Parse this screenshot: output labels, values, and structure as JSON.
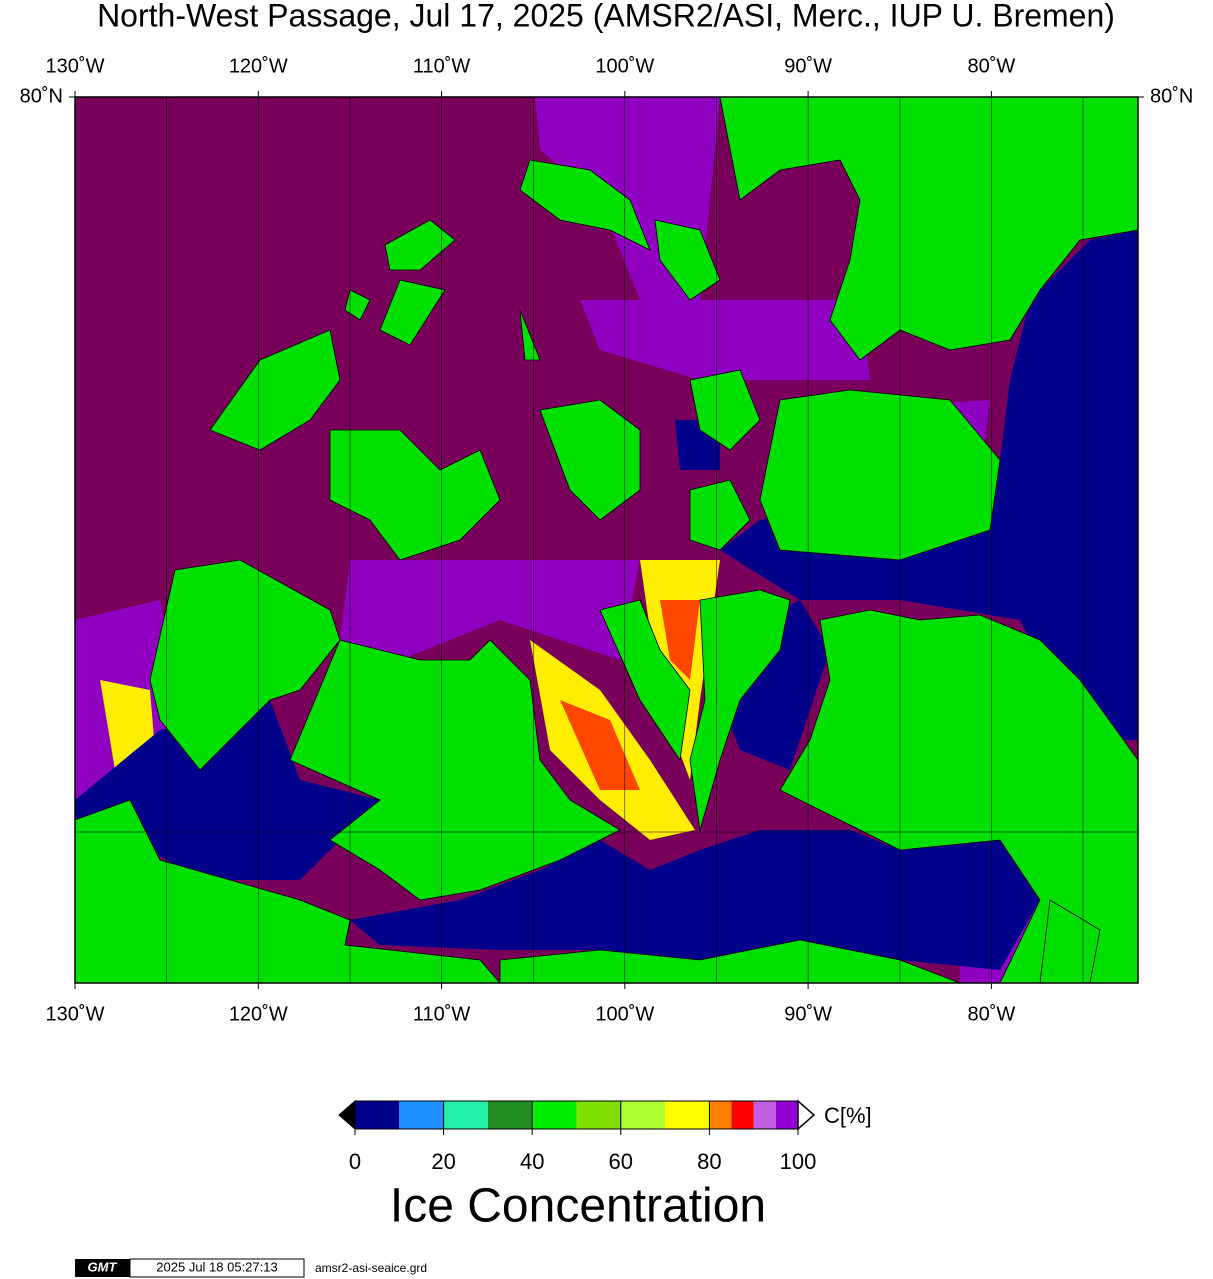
{
  "map": {
    "title": "North-West Passage, Jul 17, 2025 (AMSR2/ASI, Merc., IUP U. Bremen)",
    "lonlim": [
      -130,
      -72
    ],
    "lonticks": [
      {
        "value": -130,
        "label": "130˚W"
      },
      {
        "value": -120,
        "label": "120˚W"
      },
      {
        "value": -110,
        "label": "110˚W"
      },
      {
        "value": -100,
        "label": "100˚W"
      },
      {
        "value": -90,
        "label": "90˚W"
      },
      {
        "value": -80,
        "label": "80˚W"
      }
    ],
    "latticks": [
      {
        "value": 80,
        "label": "80˚N"
      }
    ]
  },
  "colorbar": {
    "bounds": [
      0,
      10,
      20,
      30,
      40,
      50,
      60,
      70,
      80,
      85,
      90,
      95,
      100
    ],
    "colors": [
      "#00008a",
      "#1e90ff",
      "#20f0a8",
      "#228b22",
      "#00ee00",
      "#7fe000",
      "#adff2f",
      "#ffff00",
      "#ff7f00",
      "#ff0000",
      "#c060e0",
      "#9400d3"
    ],
    "under_color": "#000000",
    "over_color": "#ffffff",
    "ticks": [
      0,
      20,
      40,
      60,
      80,
      100
    ],
    "unit": "C[%]",
    "label": "Ice Concentration"
  },
  "footer": {
    "logo": "GMT",
    "timestamp": "2025 Jul 18 05:27:13",
    "file": "amsr2-asi-seaice.grd"
  }
}
